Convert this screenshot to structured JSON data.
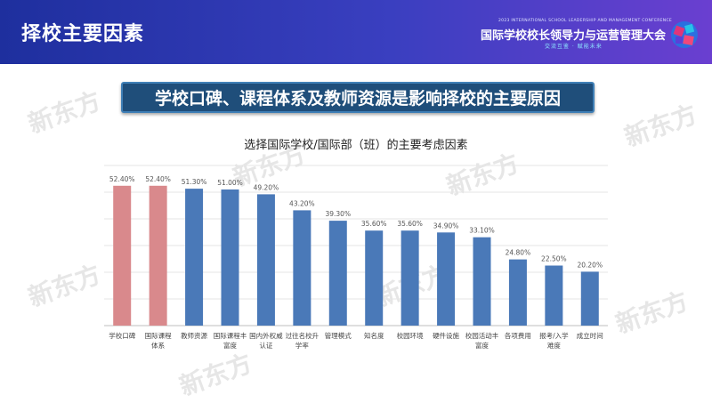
{
  "header": {
    "title": "择校主要因素",
    "conference_en": "2023 INTERNATIONAL SCHOOL LEADERSHIP AND MANAGEMENT CONFERENCE",
    "conference_cn": "国际学校校长领导力与运营管理大会",
    "slogan": "交流互鉴 · 赋能未来"
  },
  "banner": {
    "text": "学校口碑、课程体系及教师资源是影响择校的主要原因"
  },
  "watermark": {
    "text": "新东方"
  },
  "colors": {
    "highlight_bar": "#d9898c",
    "bar": "#4a79b8",
    "header_start": "#1e2f9e",
    "header_end": "#6a3fd0"
  },
  "chart_data": {
    "type": "bar",
    "title": "选择国际学校/国际部（班）的主要考虑因素",
    "categories": [
      [
        "学校口碑"
      ],
      [
        "国际课程",
        "体系"
      ],
      [
        "教师资源"
      ],
      [
        "国际课程丰",
        "富度"
      ],
      [
        "国内外权威",
        "认证"
      ],
      [
        "过往名校升",
        "学率"
      ],
      [
        "管理模式"
      ],
      [
        "知名度"
      ],
      [
        "校园环境"
      ],
      [
        "硬件设施"
      ],
      [
        "校园活动丰",
        "富度"
      ],
      [
        "各项费用"
      ],
      [
        "报考/入学",
        "难度"
      ],
      [
        "成立时间"
      ]
    ],
    "values": [
      52.4,
      52.4,
      51.3,
      51.0,
      49.2,
      43.2,
      39.3,
      35.6,
      35.6,
      34.9,
      33.1,
      24.8,
      22.5,
      20.2
    ],
    "value_labels": [
      "52.40%",
      "52.40%",
      "51.30%",
      "51.00%",
      "49.20%",
      "43.20%",
      "39.30%",
      "35.60%",
      "35.60%",
      "34.90%",
      "33.10%",
      "24.80%",
      "22.50%",
      "20.20%"
    ],
    "highlighted": [
      true,
      true,
      false,
      false,
      false,
      false,
      false,
      false,
      false,
      false,
      false,
      false,
      false,
      false
    ],
    "ylim": [
      0,
      60
    ],
    "grid": true,
    "xlabel": "",
    "ylabel": ""
  }
}
